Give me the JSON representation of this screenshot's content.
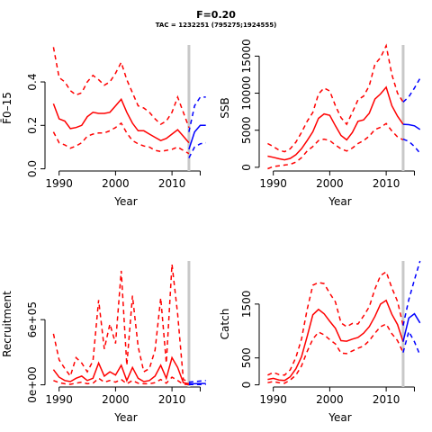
{
  "header": {
    "title": "F=0.20",
    "subtitle": "TAC = 1232251 (795275;1924555)"
  },
  "colors": {
    "history": "#ff0000",
    "forecast": "#0000ff",
    "cutoff_line": "#c8c8c8"
  },
  "chart_data": [
    {
      "type": "line",
      "ylabel": "F̄0–15",
      "xlabel": "Year",
      "xlim": [
        1987.5,
        2016.2
      ],
      "ylim": [
        -0.01,
        0.57
      ],
      "x_ticks": [
        1990,
        2000,
        2010
      ],
      "y_ticks": [
        0.0,
        0.2,
        0.4
      ],
      "y_tick_labels": [
        "0.0",
        "0.2",
        "0.4"
      ],
      "cutoff_year": 2013,
      "history_years": [
        1989,
        1990,
        1991,
        1992,
        1993,
        1994,
        1995,
        1996,
        1997,
        1998,
        1999,
        2000,
        2001,
        2002,
        2003,
        2004,
        2005,
        2006,
        2007,
        2008,
        2009,
        2010,
        2011,
        2012,
        2013
      ],
      "history": {
        "median": [
          0.3,
          0.23,
          0.22,
          0.185,
          0.19,
          0.2,
          0.24,
          0.26,
          0.255,
          0.255,
          0.26,
          0.29,
          0.32,
          0.26,
          0.21,
          0.175,
          0.175,
          0.16,
          0.145,
          0.13,
          0.14,
          0.16,
          0.18,
          0.15,
          0.12
        ],
        "lower": [
          0.17,
          0.12,
          0.11,
          0.095,
          0.105,
          0.12,
          0.15,
          0.16,
          0.165,
          0.165,
          0.175,
          0.19,
          0.21,
          0.165,
          0.13,
          0.115,
          0.105,
          0.1,
          0.085,
          0.08,
          0.085,
          0.09,
          0.1,
          0.085,
          0.07
        ],
        "upper": [
          0.56,
          0.42,
          0.4,
          0.36,
          0.34,
          0.35,
          0.4,
          0.43,
          0.41,
          0.385,
          0.4,
          0.44,
          0.49,
          0.41,
          0.35,
          0.29,
          0.28,
          0.26,
          0.23,
          0.205,
          0.22,
          0.26,
          0.33,
          0.26,
          0.19
        ]
      },
      "forecast_years": [
        2013,
        2014,
        2015,
        2016
      ],
      "forecast": {
        "median": [
          0.09,
          0.17,
          0.2,
          0.2
        ],
        "lower": [
          0.05,
          0.1,
          0.115,
          0.12
        ],
        "upper": [
          0.17,
          0.29,
          0.33,
          0.33
        ]
      }
    },
    {
      "type": "line",
      "ylabel": "SSB",
      "xlabel": "Year",
      "xlim": [
        1987.5,
        2016.2
      ],
      "ylim": [
        -500,
        16500
      ],
      "x_ticks": [
        1990,
        2000,
        2010
      ],
      "y_ticks": [
        0,
        5000,
        10000,
        15000
      ],
      "y_tick_labels": [
        "0",
        "5000",
        "10000",
        "15000"
      ],
      "cutoff_year": 2013,
      "history_years": [
        1989,
        1990,
        1991,
        1992,
        1993,
        1994,
        1995,
        1996,
        1997,
        1998,
        1999,
        2000,
        2001,
        2002,
        2003,
        2004,
        2005,
        2006,
        2007,
        2008,
        2009,
        2010,
        2011,
        2012,
        2013
      ],
      "history": {
        "median": [
          1500,
          1350,
          1150,
          1000,
          1200,
          1700,
          2500,
          3600,
          4800,
          6600,
          7200,
          7000,
          5600,
          4300,
          3700,
          4700,
          6200,
          6400,
          7300,
          9200,
          9900,
          10800,
          8300,
          6900,
          5800
        ],
        "lower": [
          -200,
          100,
          200,
          300,
          400,
          700,
          1300,
          2200,
          2800,
          3600,
          3800,
          3600,
          3000,
          2500,
          2200,
          2600,
          3200,
          3600,
          4200,
          5100,
          5400,
          5900,
          4900,
          4100,
          3700
        ],
        "upper": [
          3200,
          2800,
          2300,
          2100,
          2500,
          3400,
          4700,
          6200,
          7400,
          9900,
          10700,
          10300,
          8300,
          6700,
          5800,
          7400,
          9100,
          9600,
          11000,
          13900,
          14800,
          16400,
          12500,
          10000,
          8800
        ]
      },
      "forecast_years": [
        2013,
        2014,
        2015,
        2016
      ],
      "forecast": {
        "median": [
          5800,
          5750,
          5600,
          5100
        ],
        "lower": [
          3800,
          3500,
          2800,
          1900
        ],
        "upper": [
          8800,
          9500,
          10700,
          12000
        ]
      }
    },
    {
      "type": "line",
      "ylabel": "Recruitment",
      "xlabel": "Year",
      "xlim": [
        1987.5,
        2016.2
      ],
      "ylim": [
        -20000,
        1140000
      ],
      "x_ticks": [
        1990,
        2000,
        2010
      ],
      "y_ticks": [
        0,
        600000
      ],
      "y_tick_labels": [
        "0e+00",
        "6e+05"
      ],
      "cutoff_year": 2013,
      "history_years": [
        1989,
        1990,
        1991,
        1992,
        1993,
        1994,
        1995,
        1996,
        1997,
        1998,
        1999,
        2000,
        2001,
        2002,
        2003,
        2004,
        2005,
        2006,
        2007,
        2008,
        2009,
        2010,
        2011,
        2012,
        2013
      ],
      "history": {
        "median": [
          140000,
          70000,
          40000,
          30000,
          60000,
          80000,
          40000,
          60000,
          200000,
          80000,
          120000,
          90000,
          180000,
          40000,
          160000,
          60000,
          30000,
          40000,
          80000,
          180000,
          60000,
          250000,
          160000,
          20000,
          10000
        ],
        "lower": [
          40000,
          20000,
          10000,
          5000,
          15000,
          25000,
          10000,
          15000,
          60000,
          25000,
          40000,
          25000,
          50000,
          10000,
          40000,
          15000,
          10000,
          10000,
          20000,
          50000,
          15000,
          70000,
          40000,
          5000,
          3000
        ],
        "upper": [
          470000,
          230000,
          150000,
          80000,
          250000,
          200000,
          120000,
          220000,
          780000,
          330000,
          560000,
          380000,
          1050000,
          180000,
          820000,
          350000,
          120000,
          150000,
          320000,
          800000,
          200000,
          1110000,
          650000,
          50000,
          25000
        ]
      },
      "forecast_years": [
        2013,
        2014,
        2015,
        2016
      ],
      "forecast": {
        "median": [
          10000,
          10000,
          12000,
          12000
        ],
        "lower": [
          3000,
          2000,
          2000,
          2000
        ],
        "upper": [
          25000,
          30000,
          35000,
          40000
        ]
      }
    },
    {
      "type": "line",
      "ylabel": "Catch",
      "xlabel": "Year",
      "xlim": [
        1987.5,
        2016.2
      ],
      "ylim": [
        -40,
        2300
      ],
      "x_ticks": [
        1990,
        2000,
        2010
      ],
      "y_ticks": [
        0,
        500,
        1500
      ],
      "y_tick_labels": [
        "0",
        "500",
        "1500"
      ],
      "cutoff_year": 2013,
      "history_years": [
        1989,
        1990,
        1991,
        1992,
        1993,
        1994,
        1995,
        1996,
        1997,
        1998,
        1999,
        2000,
        2001,
        2002,
        2003,
        2004,
        2005,
        2006,
        2007,
        2008,
        2009,
        2010,
        2011,
        2012,
        2013
      ],
      "history": {
        "median": [
          100,
          120,
          90,
          80,
          150,
          300,
          520,
          900,
          1300,
          1400,
          1320,
          1180,
          1050,
          820,
          810,
          850,
          880,
          960,
          1080,
          1270,
          1500,
          1570,
          1310,
          1120,
          800
        ],
        "lower": [
          40,
          60,
          40,
          30,
          90,
          180,
          350,
          620,
          850,
          980,
          930,
          840,
          760,
          590,
          580,
          630,
          680,
          720,
          820,
          960,
          1080,
          1130,
          950,
          820,
          600
        ],
        "upper": [
          180,
          230,
          190,
          180,
          280,
          510,
          850,
          1400,
          1850,
          1900,
          1880,
          1700,
          1540,
          1150,
          1080,
          1140,
          1130,
          1280,
          1450,
          1780,
          2030,
          2100,
          1800,
          1550,
          1100
        ]
      },
      "forecast_years": [
        2013,
        2014,
        2015,
        2016
      ],
      "forecast": {
        "median": [
          800,
          1240,
          1320,
          1150
        ],
        "lower": [
          600,
          990,
          800,
          550
        ],
        "upper": [
          1100,
          1580,
          1950,
          2300
        ]
      }
    }
  ]
}
